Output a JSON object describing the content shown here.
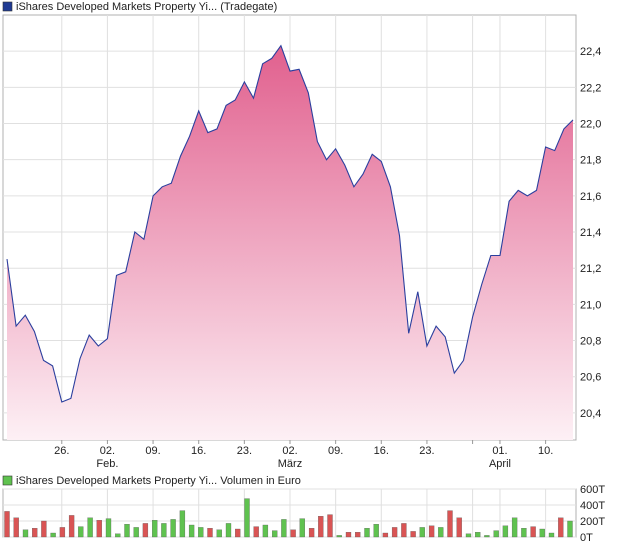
{
  "price_panel": {
    "legend_label": "iShares Developed Markets Property Yi...  (Tradegate)",
    "legend_color": "#1f3a93"
  },
  "volume_panel": {
    "legend_label": "iShares Developed Markets Property Yi...  Volumen in Euro",
    "legend_color": "#5fc24f"
  },
  "chart_data": [
    {
      "type": "area",
      "title": "",
      "xlabel": "",
      "ylabel": "",
      "ylim": [
        20.25,
        22.6
      ],
      "yticks": [
        20.4,
        20.6,
        20.8,
        21.0,
        21.2,
        21.4,
        21.6,
        21.8,
        22.0,
        22.2,
        22.4
      ],
      "ytick_labels": [
        "20,4",
        "20,6",
        "20,8",
        "21,0",
        "21,2",
        "21,4",
        "21,6",
        "21,8",
        "22,0",
        "22,2",
        "22,4"
      ],
      "yaxis_position": "right",
      "grid": true,
      "line_color": "#2b3f9e",
      "fill_top_color": "#e1608e",
      "fill_bottom_color": "#fdf0f5",
      "xticks": [
        {
          "index": 6,
          "label": "26.",
          "sub": ""
        },
        {
          "index": 11,
          "label": "02.",
          "sub": "Feb."
        },
        {
          "index": 16,
          "label": "09.",
          "sub": ""
        },
        {
          "index": 21,
          "label": "16.",
          "sub": ""
        },
        {
          "index": 26,
          "label": "23.",
          "sub": ""
        },
        {
          "index": 31,
          "label": "02.",
          "sub": "März"
        },
        {
          "index": 36,
          "label": "09.",
          "sub": ""
        },
        {
          "index": 41,
          "label": "16.",
          "sub": ""
        },
        {
          "index": 46,
          "label": "23.",
          "sub": ""
        },
        {
          "index": 51,
          "label": "",
          "sub": ""
        },
        {
          "index": 54,
          "label": "01.",
          "sub": "April"
        },
        {
          "index": 59,
          "label": "10.",
          "sub": ""
        }
      ],
      "values": [
        21.25,
        20.88,
        20.94,
        20.85,
        20.69,
        20.66,
        20.46,
        20.48,
        20.7,
        20.83,
        20.77,
        20.81,
        21.16,
        21.18,
        21.4,
        21.36,
        21.6,
        21.65,
        21.67,
        21.82,
        21.93,
        22.07,
        21.95,
        21.97,
        22.1,
        22.13,
        22.23,
        22.14,
        22.33,
        22.36,
        22.43,
        22.29,
        22.3,
        22.17,
        21.9,
        21.8,
        21.86,
        21.77,
        21.65,
        21.72,
        21.83,
        21.79,
        21.65,
        21.38,
        20.84,
        21.07,
        20.77,
        20.88,
        20.82,
        20.62,
        20.69,
        20.93,
        21.11,
        21.27,
        21.27,
        21.57,
        21.63,
        21.6,
        21.63,
        21.87,
        21.85,
        21.97,
        22.02
      ]
    },
    {
      "type": "bar",
      "title": "",
      "ylim": [
        0,
        600
      ],
      "yticks": [
        0,
        200,
        400,
        600
      ],
      "ytick_labels": [
        "0T",
        "200T",
        "400T",
        "600T"
      ],
      "yaxis_position": "right",
      "grid": true,
      "up_color": "#5fc24f",
      "down_color": "#d95454",
      "values": [
        320,
        240,
        90,
        110,
        200,
        50,
        120,
        270,
        130,
        240,
        210,
        230,
        40,
        160,
        120,
        170,
        210,
        170,
        220,
        330,
        150,
        120,
        110,
        90,
        170,
        100,
        480,
        130,
        150,
        80,
        220,
        90,
        230,
        110,
        260,
        280,
        20,
        60,
        60,
        110,
        160,
        50,
        120,
        170,
        70,
        120,
        140,
        120,
        330,
        240,
        40,
        60,
        20,
        80,
        140,
        240,
        110,
        130,
        100,
        50,
        240,
        200
      ],
      "directions": [
        "down",
        "down",
        "up",
        "down",
        "down",
        "up",
        "down",
        "down",
        "up",
        "up",
        "down",
        "up",
        "up",
        "up",
        "up",
        "down",
        "up",
        "up",
        "up",
        "up",
        "up",
        "up",
        "down",
        "up",
        "up",
        "down",
        "up",
        "down",
        "up",
        "up",
        "up",
        "down",
        "up",
        "down",
        "down",
        "down",
        "up",
        "down",
        "down",
        "up",
        "up",
        "down",
        "down",
        "down",
        "down",
        "up",
        "down",
        "up",
        "down",
        "down",
        "up",
        "up",
        "up",
        "up",
        "up",
        "up",
        "up",
        "down",
        "up",
        "up",
        "down",
        "up"
      ]
    }
  ]
}
